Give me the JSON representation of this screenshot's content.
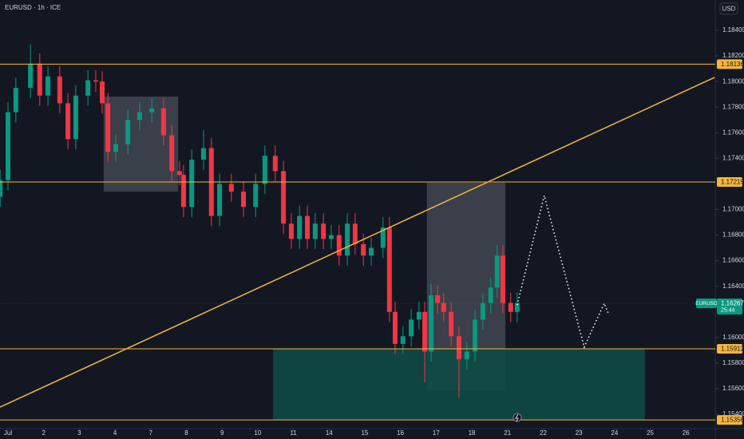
{
  "chart_data": {
    "type": "candlestick",
    "title": "EURUSD · 1h · ICE",
    "currency": "USD",
    "symbol_tag": "EURUSD",
    "last_price": 1.16267,
    "countdown": "25:44",
    "up_color": "#089981",
    "down_color": "#f23645",
    "xlim": [
      -0.224,
      19.8
    ],
    "ylim": [
      1.15288,
      1.18637
    ],
    "xticks": [
      {
        "value": 0,
        "label": "Jul"
      },
      {
        "value": 1,
        "label": "2"
      },
      {
        "value": 2,
        "label": "3"
      },
      {
        "value": 3,
        "label": "4"
      },
      {
        "value": 4,
        "label": "7"
      },
      {
        "value": 5,
        "label": "8"
      },
      {
        "value": 6,
        "label": "9"
      },
      {
        "value": 7,
        "label": "10"
      },
      {
        "value": 8,
        "label": "11"
      },
      {
        "value": 9,
        "label": "14"
      },
      {
        "value": 10,
        "label": "15"
      },
      {
        "value": 11,
        "label": "16"
      },
      {
        "value": 12,
        "label": "17"
      },
      {
        "value": 13,
        "label": "18"
      },
      {
        "value": 14,
        "label": "21"
      },
      {
        "value": 15,
        "label": "22"
      },
      {
        "value": 16,
        "label": "23"
      },
      {
        "value": 17,
        "label": "24"
      },
      {
        "value": 18,
        "label": "25"
      },
      {
        "value": 19,
        "label": "26"
      }
    ],
    "yticks": [
      {
        "value": 1.184,
        "label": "1.18400"
      },
      {
        "value": 1.182,
        "label": "1.18200"
      },
      {
        "value": 1.18,
        "label": "1.18000"
      },
      {
        "value": 1.178,
        "label": "1.17800"
      },
      {
        "value": 1.176,
        "label": "1.17600"
      },
      {
        "value": 1.174,
        "label": "1.17400"
      },
      {
        "value": 1.17,
        "label": "1.17000"
      },
      {
        "value": 1.168,
        "label": "1.16800"
      },
      {
        "value": 1.166,
        "label": "1.16600"
      },
      {
        "value": 1.164,
        "label": "1.16400"
      },
      {
        "value": 1.16,
        "label": "1.16000"
      },
      {
        "value": 1.158,
        "label": "1.15800"
      },
      {
        "value": 1.156,
        "label": "1.15600"
      },
      {
        "value": 1.154,
        "label": "1.15400"
      }
    ],
    "x": [
      -0.22,
      0.0,
      0.22,
      0.63,
      0.89,
      1.12,
      1.45,
      1.68,
      1.9,
      2.24,
      2.46,
      2.64,
      2.8,
      3.02,
      3.36,
      3.69,
      4.03,
      4.36,
      4.59,
      4.81,
      4.92,
      5.15,
      5.48,
      5.7,
      5.93,
      6.26,
      6.6,
      6.94,
      7.2,
      7.49,
      7.72,
      7.94,
      8.17,
      8.39,
      8.61,
      8.84,
      9.06,
      9.28,
      9.51,
      9.73,
      9.96,
      10.18,
      10.51,
      10.69,
      10.85,
      11.07,
      11.3,
      11.52,
      11.68,
      11.86,
      12.04,
      12.21,
      12.42,
      12.64,
      12.86,
      13.09,
      13.31,
      13.53,
      13.71,
      13.87,
      14.09,
      14.27
    ],
    "open": [
      1.171,
      1.1723,
      1.1776,
      1.1795,
      1.1814,
      1.1789,
      1.1804,
      1.1783,
      1.1755,
      1.1789,
      1.1801,
      1.18,
      1.1783,
      1.1745,
      1.1751,
      1.177,
      1.1776,
      1.1779,
      1.1758,
      1.173,
      1.1727,
      1.1702,
      1.1739,
      1.1748,
      1.1695,
      1.172,
      1.1714,
      1.1702,
      1.172,
      1.1742,
      1.173,
      1.1689,
      1.1677,
      1.1695,
      1.1677,
      1.1689,
      1.1677,
      1.168,
      1.1664,
      1.1689,
      1.1673,
      1.1664,
      1.167,
      1.1686,
      1.162,
      1.1595,
      1.1601,
      1.1614,
      1.162,
      1.1589,
      1.1633,
      1.1627,
      1.162,
      1.1601,
      1.1583,
      1.1589,
      1.1614,
      1.1627,
      1.1639,
      1.1664,
      1.1627,
      1.162
    ],
    "high": [
      1.1731,
      1.1784,
      1.1803,
      1.1829,
      1.1822,
      1.1812,
      1.1812,
      1.1791,
      1.1797,
      1.1809,
      1.1809,
      1.1808,
      1.1791,
      1.1759,
      1.1778,
      1.1784,
      1.1787,
      1.1787,
      1.1766,
      1.1738,
      1.1735,
      1.1747,
      1.1762,
      1.1756,
      1.1728,
      1.1728,
      1.1722,
      1.1728,
      1.175,
      1.175,
      1.1738,
      1.1697,
      1.1703,
      1.1703,
      1.1697,
      1.1697,
      1.1688,
      1.1688,
      1.1697,
      1.1697,
      1.1681,
      1.1678,
      1.1694,
      1.1694,
      1.1628,
      1.1609,
      1.1622,
      1.1628,
      1.1628,
      1.1642,
      1.1641,
      1.1635,
      1.1628,
      1.1609,
      1.1597,
      1.1622,
      1.1635,
      1.1647,
      1.1672,
      1.1672,
      1.1635,
      1.1635
    ],
    "low": [
      1.1702,
      1.1715,
      1.1768,
      1.1787,
      1.1781,
      1.1781,
      1.1775,
      1.1747,
      1.1747,
      1.1781,
      1.1792,
      1.1775,
      1.1737,
      1.1737,
      1.1743,
      1.1762,
      1.1768,
      1.175,
      1.1722,
      1.1719,
      1.1694,
      1.1694,
      1.1731,
      1.1687,
      1.1687,
      1.1706,
      1.1694,
      1.1694,
      1.1712,
      1.1722,
      1.1681,
      1.1669,
      1.1669,
      1.1669,
      1.1669,
      1.1669,
      1.1669,
      1.1656,
      1.1656,
      1.1665,
      1.1656,
      1.1656,
      1.1662,
      1.1612,
      1.1587,
      1.1587,
      1.1593,
      1.1606,
      1.1565,
      1.1581,
      1.1619,
      1.1612,
      1.1593,
      1.1553,
      1.1575,
      1.1581,
      1.1606,
      1.1619,
      1.1631,
      1.1619,
      1.1612,
      1.1612
    ],
    "close": [
      1.1723,
      1.1776,
      1.1795,
      1.1814,
      1.1789,
      1.1804,
      1.1783,
      1.1755,
      1.1789,
      1.1801,
      1.18,
      1.1783,
      1.1745,
      1.1751,
      1.177,
      1.1776,
      1.1779,
      1.1758,
      1.173,
      1.1727,
      1.1702,
      1.1739,
      1.1748,
      1.1695,
      1.172,
      1.1714,
      1.1702,
      1.172,
      1.1742,
      1.173,
      1.1689,
      1.1677,
      1.1695,
      1.1677,
      1.1689,
      1.1677,
      1.168,
      1.1664,
      1.1689,
      1.1673,
      1.1664,
      1.167,
      1.1686,
      1.162,
      1.1595,
      1.1601,
      1.1614,
      1.162,
      1.1589,
      1.1633,
      1.1627,
      1.162,
      1.1601,
      1.1583,
      1.1589,
      1.1614,
      1.1627,
      1.1639,
      1.1664,
      1.1627,
      1.162,
      1.1627
    ],
    "levels": [
      1.18136,
      1.17215,
      1.15912,
      1.15356
    ],
    "level_color": "#f5b63a",
    "trend_line": {
      "x": [
        -0.224,
        19.8
      ],
      "y": [
        1.15456,
        1.18032
      ]
    },
    "boxes": [
      {
        "x": [
          2.68,
          4.77
        ],
        "y": [
          1.1714,
          1.17883
        ],
        "color": "#5d606b"
      },
      {
        "x": [
          11.74,
          13.94
        ],
        "y": [
          1.15587,
          1.17209
        ],
        "color": "#5d606b"
      },
      {
        "x": [
          7.43,
          17.85
        ],
        "y": [
          1.15356,
          1.15911
        ],
        "color": "#0f4a44"
      }
    ],
    "projection": {
      "x": [
        14.27,
        15.03,
        16.15,
        16.71,
        16.82
      ],
      "y": [
        1.16254,
        1.17109,
        1.15924,
        1.16267,
        1.16192
      ]
    }
  }
}
